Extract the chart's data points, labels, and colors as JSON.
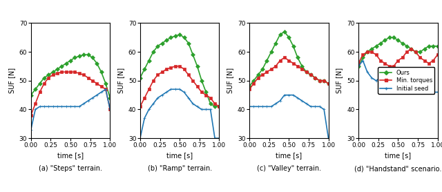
{
  "subplots": [
    {
      "title": "(a) \"Steps\" terrain.",
      "ylabel": "SUF [N]",
      "xlabel": "time [s]",
      "ylim": [
        30,
        70
      ],
      "xlim": [
        0.0,
        1.0
      ],
      "yticks": [
        30,
        40,
        50,
        60,
        70
      ],
      "xticks": [
        0.0,
        0.25,
        0.5,
        0.75,
        1.0
      ],
      "green": [
        45,
        47,
        49,
        51,
        52,
        53,
        54,
        55,
        56,
        57,
        58,
        58.5,
        59,
        59,
        58,
        56,
        53,
        49,
        44
      ],
      "orange": [
        38,
        42,
        46,
        49,
        51,
        52,
        52.5,
        53,
        53,
        53,
        53,
        52.5,
        52,
        51,
        50,
        49,
        48,
        47,
        40
      ],
      "blue": [
        33,
        40,
        41,
        41,
        41,
        41,
        41,
        41,
        41,
        41,
        41,
        41,
        42,
        43,
        44,
        45,
        46,
        47,
        40
      ]
    },
    {
      "title": "(b) \"Ramp\" terrain.",
      "ylabel": "SUF [N]",
      "xlabel": "time [s]",
      "ylim": [
        30,
        70
      ],
      "xlim": [
        0.0,
        1.0
      ],
      "yticks": [
        30,
        40,
        50,
        60,
        70
      ],
      "xticks": [
        0.0,
        0.25,
        0.5,
        0.75,
        1.0
      ],
      "green": [
        51,
        54,
        57,
        60,
        62,
        63,
        64,
        65,
        65.5,
        66,
        65,
        63,
        59,
        55,
        50,
        46,
        42,
        41,
        41
      ],
      "orange": [
        41,
        44,
        47,
        50,
        52,
        53,
        54,
        54.5,
        55,
        55,
        54,
        52,
        50,
        48,
        46,
        45,
        44,
        42,
        41
      ],
      "blue": [
        30,
        37,
        40,
        42,
        44,
        45,
        46,
        47,
        47,
        47,
        46,
        44,
        42,
        41,
        40,
        40,
        40,
        30,
        30
      ]
    },
    {
      "title": "(c) \"Valley\" terrain.",
      "ylabel": "SUF [N]",
      "xlabel": "time [s]",
      "ylim": [
        30,
        70
      ],
      "xlim": [
        0.0,
        1.0
      ],
      "yticks": [
        30,
        40,
        50,
        60,
        70
      ],
      "xticks": [
        0.0,
        0.25,
        0.5,
        0.75,
        1.0
      ],
      "green": [
        48,
        50,
        52,
        54,
        57,
        60,
        63,
        66,
        67,
        65,
        62,
        58,
        55,
        53,
        52,
        51,
        50,
        50,
        49
      ],
      "orange": [
        47,
        49,
        51,
        52,
        53,
        54,
        55,
        57,
        58,
        57,
        56,
        55,
        54,
        53,
        52,
        51,
        50,
        50,
        49
      ],
      "blue": [
        41,
        41,
        41,
        41,
        41,
        41,
        42,
        43,
        45,
        45,
        45,
        44,
        43,
        42,
        41,
        41,
        41,
        40,
        30
      ]
    },
    {
      "title": "(d) \"Handstand\" scenario.",
      "ylabel": "SUF [N]",
      "xlabel": "time [s]",
      "ylim": [
        30,
        70
      ],
      "xlim": [
        0.0,
        1.0
      ],
      "yticks": [
        30,
        40,
        50,
        60,
        70
      ],
      "xticks": [
        0.0,
        0.25,
        0.5,
        0.75,
        1.0
      ],
      "green": [
        55,
        58,
        60,
        61,
        62,
        63,
        64,
        65,
        65,
        64,
        63,
        62,
        61,
        60,
        60,
        61,
        62,
        62,
        62
      ],
      "orange": [
        56,
        59,
        60,
        60,
        59,
        57,
        56,
        55,
        55,
        57,
        58,
        60,
        61,
        60,
        58,
        57,
        56,
        57,
        59
      ],
      "blue": [
        55,
        57,
        53,
        51,
        50,
        51,
        52,
        50,
        49,
        48,
        47,
        46,
        46,
        46,
        46,
        46,
        46,
        46,
        46
      ]
    }
  ],
  "legend_labels": [
    "Ours",
    "Min. torques",
    "Initial seed"
  ],
  "green_color": "#2ca02c",
  "orange_color": "#d62728",
  "blue_color": "#1f77b4",
  "marker_size": 3,
  "linewidth": 1.2
}
